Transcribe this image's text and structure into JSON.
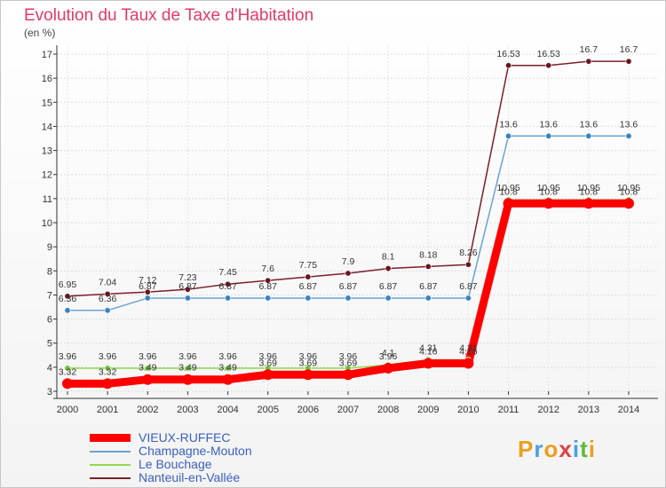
{
  "chart_data": {
    "type": "line",
    "title": "Evolution du Taux de Taxe d'Habitation",
    "subtitle": "(en %)",
    "xlabel": "",
    "ylabel": "",
    "ylim": [
      3,
      17
    ],
    "yticks": [
      3,
      4,
      5,
      6,
      7,
      8,
      9,
      10,
      11,
      12,
      13,
      14,
      15,
      16,
      17
    ],
    "grid": true,
    "legend_position": "bottom-left",
    "x": [
      "2000",
      "2001",
      "2002",
      "2003",
      "2004",
      "2005",
      "2006",
      "2007",
      "2008",
      "2009",
      "2010",
      "2011",
      "2012",
      "2013",
      "2014"
    ],
    "series": [
      {
        "name": "Nanteuil-en-Vallée",
        "color": "#7a1f2a",
        "marker": "#6b1520",
        "width": 1.5,
        "values": [
          6.95,
          7.04,
          7.12,
          7.23,
          7.45,
          7.6,
          7.75,
          7.9,
          8.1,
          8.18,
          8.26,
          16.53,
          16.53,
          16.7,
          16.7
        ],
        "labels": [
          "6.95",
          "7.04",
          "7.12",
          "7.23",
          "7.45",
          "7.6",
          "7.75",
          "7.9",
          "8.1",
          "8.18",
          "8.26",
          "16.53",
          "16.53",
          "16.7",
          "16.7"
        ],
        "label_dy": -10
      },
      {
        "name": "Champagne-Mouton",
        "color": "#6aa3d0",
        "marker": "#3a82c0",
        "width": 1.5,
        "values": [
          6.36,
          6.36,
          6.87,
          6.87,
          6.87,
          6.87,
          6.87,
          6.87,
          6.87,
          6.87,
          6.87,
          13.6,
          13.6,
          13.6,
          13.6
        ],
        "labels": [
          "6.36",
          "6.36",
          "6.87",
          "6.87",
          "6.87",
          "6.87",
          "6.87",
          "6.87",
          "6.87",
          "6.87",
          "6.87",
          "13.6",
          "13.6",
          "13.6",
          "13.6"
        ],
        "label_dy": -10
      },
      {
        "name": "Le Bouchage",
        "color": "#90d850",
        "marker": "#6cc030",
        "width": 1.5,
        "values": [
          3.96,
          3.96,
          3.96,
          3.96,
          3.96,
          3.96,
          3.96,
          3.96,
          4.1,
          4.31,
          4.31,
          10.95,
          10.95,
          10.95,
          10.95
        ],
        "labels": [
          "3.96",
          "3.96",
          "3.96",
          "3.96",
          "3.96",
          "3.96",
          "3.96",
          "3.96",
          "4.1",
          "4.31",
          "4.31",
          "10.95",
          "10.95",
          "10.95",
          "10.95"
        ],
        "label_dy": -10
      },
      {
        "name": "VIEUX-RUFFEC",
        "color": "#ff0000",
        "marker": "#ff0000",
        "width": 9,
        "values": [
          3.32,
          3.32,
          3.49,
          3.49,
          3.49,
          3.69,
          3.69,
          3.69,
          3.96,
          4.16,
          4.16,
          10.8,
          10.8,
          10.8,
          10.8
        ],
        "labels": [
          "3.32",
          "3.32",
          "3.49",
          "3.49",
          "3.49",
          "3.69",
          "3.69",
          "3.69",
          "3.96",
          "4.16",
          "4.16",
          "10.8",
          "10.8",
          "10.8",
          "10.8"
        ],
        "label_dy": -10
      }
    ],
    "legend": [
      "VIEUX-RUFFEC",
      "Champagne-Mouton",
      "Le Bouchage",
      "Nanteuil-en-Vallée"
    ]
  },
  "logo": {
    "letters": [
      "P",
      "r",
      "o",
      "x",
      "i",
      "t",
      "i"
    ],
    "colors": [
      "#e8a020",
      "#4aa0e0",
      "#e8a020",
      "#e04040",
      "#4aa0e0",
      "#60b840",
      "#e8a020"
    ]
  }
}
